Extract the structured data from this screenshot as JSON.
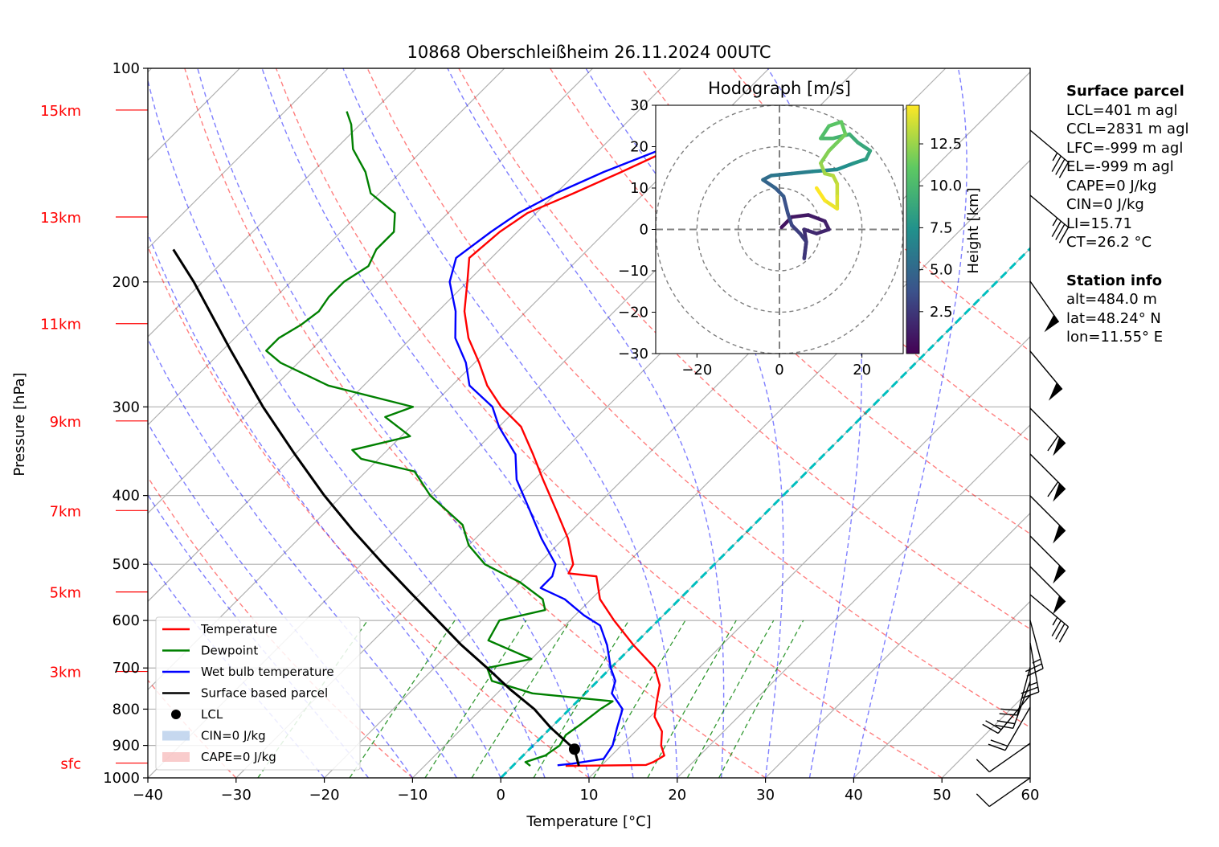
{
  "title": "10868 Oberschleißheim 26.11.2024 00UTC",
  "xlabel": "Temperature [°C]",
  "ylabel": "Pressure [hPa]",
  "x_ticks": [
    "−40",
    "−30",
    "−20",
    "−10",
    "0",
    "10",
    "20",
    "30",
    "40",
    "50",
    "60"
  ],
  "y_ticks": [
    "100",
    "200",
    "300",
    "400",
    "500",
    "600",
    "700",
    "800",
    "900",
    "1000"
  ],
  "height_labels": [
    {
      "label": "15km",
      "p": 114.5
    },
    {
      "label": "13km",
      "p": 162
    },
    {
      "label": "11km",
      "p": 229
    },
    {
      "label": "9km",
      "p": 314
    },
    {
      "label": "7km",
      "p": 420
    },
    {
      "label": "5km",
      "p": 547
    },
    {
      "label": "3km",
      "p": 708
    },
    {
      "label": "sfc",
      "p": 953
    }
  ],
  "legend": [
    {
      "label": "Temperature",
      "color": "#ff0000",
      "kind": "line"
    },
    {
      "label": "Dewpoint",
      "color": "#008000",
      "kind": "line"
    },
    {
      "label": "Wet bulb temperature",
      "color": "#0000ff",
      "kind": "line"
    },
    {
      "label": "Surface based parcel",
      "color": "#000000",
      "kind": "line"
    },
    {
      "label": "LCL",
      "color": "#000000",
      "kind": "dot"
    },
    {
      "label": "CIN=0 J/kg",
      "color": "#aec7e8",
      "kind": "patch"
    },
    {
      "label": "CAPE=0 J/kg",
      "color": "#f7b6b6",
      "kind": "patch"
    }
  ],
  "hodograph": {
    "title": "Hodograph [m/s]",
    "colorbar_label": "Height [km]",
    "u_ticks": [
      "−20",
      "0",
      "20"
    ],
    "v_ticks": [
      "30",
      "20",
      "10",
      "0",
      "−10",
      "−20",
      "−30"
    ],
    "cbar_ticks": [
      "12.5",
      "10.0",
      "7.5",
      "5.0",
      "2.5"
    ],
    "u_range": [
      -30,
      30
    ],
    "v_range": [
      -30,
      30
    ],
    "rings": [
      10,
      20,
      30
    ],
    "trace": [
      {
        "u": 0.5,
        "v": 0.5,
        "h": 0.5
      },
      {
        "u": 3,
        "v": 3,
        "h": 0.8
      },
      {
        "u": 7,
        "v": 3.5,
        "h": 1.0
      },
      {
        "u": 11,
        "v": 2,
        "h": 1.2
      },
      {
        "u": 12,
        "v": 0,
        "h": 1.4
      },
      {
        "u": 9,
        "v": -1,
        "h": 1.6
      },
      {
        "u": 6,
        "v": 0,
        "h": 1.8
      },
      {
        "u": 6.5,
        "v": -3,
        "h": 2.0
      },
      {
        "u": 6,
        "v": -7,
        "h": 2.2
      },
      {
        "u": 6.5,
        "v": -3,
        "h": 2.4
      },
      {
        "u": 5,
        "v": -1,
        "h": 2.6
      },
      {
        "u": 3,
        "v": 1,
        "h": 2.8
      },
      {
        "u": 2,
        "v": 4,
        "h": 3.2
      },
      {
        "u": 1,
        "v": 8,
        "h": 3.7
      },
      {
        "u": -1,
        "v": 10,
        "h": 4.2
      },
      {
        "u": -4,
        "v": 12,
        "h": 4.7
      },
      {
        "u": -2,
        "v": 13,
        "h": 5.2
      },
      {
        "u": 3,
        "v": 13.5,
        "h": 5.8
      },
      {
        "u": 8,
        "v": 14,
        "h": 6.3
      },
      {
        "u": 14,
        "v": 14.5,
        "h": 6.8
      },
      {
        "u": 18,
        "v": 16,
        "h": 7.3
      },
      {
        "u": 21,
        "v": 17,
        "h": 7.8
      },
      {
        "u": 22,
        "v": 19,
        "h": 8.3
      },
      {
        "u": 19,
        "v": 21,
        "h": 8.8
      },
      {
        "u": 17,
        "v": 23,
        "h": 9.2
      },
      {
        "u": 13,
        "v": 22,
        "h": 9.6
      },
      {
        "u": 10,
        "v": 22,
        "h": 10.0
      },
      {
        "u": 12,
        "v": 25,
        "h": 10.4
      },
      {
        "u": 15,
        "v": 26,
        "h": 10.8
      },
      {
        "u": 16,
        "v": 23,
        "h": 11.2
      },
      {
        "u": 12,
        "v": 19,
        "h": 11.6
      },
      {
        "u": 10,
        "v": 16,
        "h": 12.0
      },
      {
        "u": 11,
        "v": 13.5,
        "h": 12.4
      },
      {
        "u": 13,
        "v": 13,
        "h": 12.8
      },
      {
        "u": 14,
        "v": 11,
        "h": 13.2
      },
      {
        "u": 14,
        "v": 8,
        "h": 13.6
      },
      {
        "u": 14,
        "v": 5,
        "h": 14.0
      },
      {
        "u": 11,
        "v": 7,
        "h": 14.4
      },
      {
        "u": 9,
        "v": 10,
        "h": 14.8
      }
    ]
  },
  "surface_parcel": {
    "header": "Surface parcel",
    "lines": [
      "LCL=401 m agl",
      "CCL=2831 m agl",
      "LFC=-999 m agl",
      "EL=-999 m agl",
      "CAPE=0 J/kg",
      "CIN=0 J/kg",
      "LI=15.71",
      "CT=26.2 °C"
    ]
  },
  "station_info": {
    "header": "Station info",
    "lines": [
      "alt=484.0 m",
      "lat=48.24° N",
      "lon=11.55° E"
    ]
  },
  "chart_data": {
    "type": "line",
    "title": "10868 Oberschleißheim 26.11.2024 00UTC",
    "xlabel": "Temperature [°C]",
    "ylabel": "Pressure [hPa]",
    "xlim": [
      -40,
      60
    ],
    "ylim": [
      1000,
      100
    ],
    "y_scale": "log",
    "skew": true,
    "grid": true,
    "legend_position": "bottom-left",
    "series": [
      {
        "name": "Temperature",
        "color": "#ff0000",
        "points": [
          [
            962,
            6
          ],
          [
            959,
            15
          ],
          [
            950,
            15.5
          ],
          [
            930,
            16
          ],
          [
            900,
            14.5
          ],
          [
            860,
            13
          ],
          [
            820,
            10.5
          ],
          [
            780,
            9
          ],
          [
            740,
            7.5
          ],
          [
            700,
            5
          ],
          [
            650,
            0
          ],
          [
            600,
            -5
          ],
          [
            560,
            -9
          ],
          [
            520,
            -12
          ],
          [
            515,
            -15.5
          ],
          [
            500,
            -16
          ],
          [
            460,
            -19.5
          ],
          [
            420,
            -24
          ],
          [
            380,
            -29
          ],
          [
            350,
            -33
          ],
          [
            320,
            -37.5
          ],
          [
            300,
            -42
          ],
          [
            280,
            -46
          ],
          [
            260,
            -49.5
          ],
          [
            240,
            -53.5
          ],
          [
            220,
            -57
          ],
          [
            200,
            -60
          ],
          [
            185,
            -62.5
          ],
          [
            170,
            -62
          ],
          [
            160,
            -61
          ],
          [
            150,
            -58
          ],
          [
            140,
            -55
          ],
          [
            130,
            -52
          ],
          [
            125,
            -48
          ],
          [
            120,
            -45
          ],
          [
            115,
            -42
          ]
        ]
      },
      {
        "name": "Dewpoint",
        "color": "#008000",
        "points": [
          [
            962,
            2
          ],
          [
            950,
            1
          ],
          [
            930,
            2.5
          ],
          [
            900,
            3
          ],
          [
            870,
            2.5
          ],
          [
            840,
            3
          ],
          [
            800,
            3.5
          ],
          [
            780,
            4
          ],
          [
            760,
            -6
          ],
          [
            730,
            -12
          ],
          [
            700,
            -14
          ],
          [
            680,
            -10
          ],
          [
            640,
            -17
          ],
          [
            600,
            -18
          ],
          [
            580,
            -14
          ],
          [
            560,
            -15.5
          ],
          [
            530,
            -20
          ],
          [
            520,
            -22
          ],
          [
            500,
            -26
          ],
          [
            470,
            -30
          ],
          [
            440,
            -33
          ],
          [
            400,
            -40
          ],
          [
            370,
            -44.5
          ],
          [
            355,
            -52
          ],
          [
            345,
            -54
          ],
          [
            330,
            -49
          ],
          [
            310,
            -54
          ],
          [
            300,
            -52
          ],
          [
            280,
            -64
          ],
          [
            260,
            -72
          ],
          [
            250,
            -75
          ],
          [
            240,
            -75
          ],
          [
            230,
            -74
          ],
          [
            220,
            -73.5
          ],
          [
            210,
            -74
          ],
          [
            200,
            -74
          ],
          [
            190,
            -73
          ],
          [
            180,
            -74
          ],
          [
            170,
            -74
          ],
          [
            160,
            -76
          ],
          [
            150,
            -81
          ],
          [
            140,
            -84
          ],
          [
            130,
            -88
          ],
          [
            120,
            -91
          ],
          [
            115,
            -93
          ]
        ]
      },
      {
        "name": "Wet bulb temperature",
        "color": "#0000ff",
        "points": [
          [
            960,
            5
          ],
          [
            955,
            6.5
          ],
          [
            940,
            9.5
          ],
          [
            900,
            9
          ],
          [
            850,
            7.5
          ],
          [
            800,
            6
          ],
          [
            760,
            3
          ],
          [
            730,
            2
          ],
          [
            700,
            0
          ],
          [
            650,
            -3
          ],
          [
            610,
            -6
          ],
          [
            590,
            -9
          ],
          [
            560,
            -13
          ],
          [
            540,
            -17
          ],
          [
            520,
            -17
          ],
          [
            500,
            -18
          ],
          [
            460,
            -22.5
          ],
          [
            420,
            -27
          ],
          [
            380,
            -32
          ],
          [
            350,
            -35
          ],
          [
            320,
            -40
          ],
          [
            300,
            -43
          ],
          [
            280,
            -48
          ],
          [
            260,
            -51
          ],
          [
            240,
            -55
          ],
          [
            220,
            -58
          ],
          [
            200,
            -62
          ],
          [
            185,
            -64
          ],
          [
            170,
            -63
          ],
          [
            160,
            -62
          ],
          [
            150,
            -60
          ],
          [
            140,
            -57
          ],
          [
            130,
            -53
          ],
          [
            120,
            -46
          ],
          [
            115,
            -43
          ]
        ]
      },
      {
        "name": "Surface based parcel",
        "color": "#000000",
        "points": [
          [
            962,
            7.5
          ],
          [
            911,
            5.1
          ],
          [
            850,
            0
          ],
          [
            800,
            -4
          ],
          [
            750,
            -9
          ],
          [
            700,
            -14
          ],
          [
            650,
            -19.5
          ],
          [
            600,
            -25
          ],
          [
            550,
            -31
          ],
          [
            500,
            -37.5
          ],
          [
            450,
            -44.5
          ],
          [
            400,
            -52
          ],
          [
            350,
            -60
          ],
          [
            300,
            -69
          ],
          [
            250,
            -79
          ],
          [
            200,
            -91
          ],
          [
            180,
            -97
          ]
        ]
      }
    ],
    "lcl": {
      "p": 911,
      "t": 5.1
    },
    "cin": 0,
    "cape": 0
  }
}
